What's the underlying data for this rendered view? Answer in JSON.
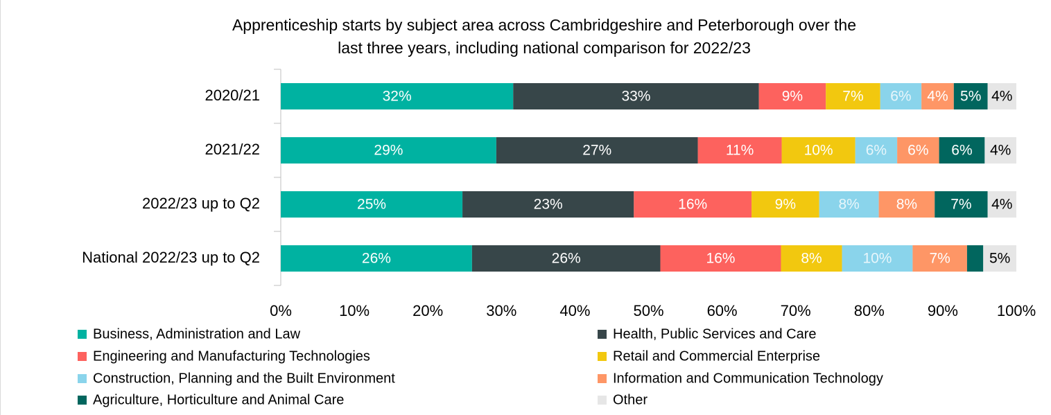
{
  "chart_data": {
    "type": "stacked-bar-horizontal",
    "title": [
      "Apprenticeship starts by subject area across Cambridgeshire and Peterborough over the",
      "last three years, including national comparison for 2022/23"
    ],
    "categories": [
      "2020/21",
      "2021/22",
      "2022/23 up to Q2",
      "National 2022/23 up to Q2"
    ],
    "series": [
      {
        "name": "Business, Administration and Law",
        "color": "#00b2a1",
        "label_color": "#ffffff",
        "values": [
          31.6,
          29.3,
          24.7,
          26.0
        ],
        "value_labels": [
          "32%",
          "29%",
          "25%",
          "26%"
        ]
      },
      {
        "name": "Health, Public Services and Care",
        "color": "#374649",
        "label_color": "#ffffff",
        "values": [
          33.4,
          27.4,
          23.3,
          25.6
        ],
        "value_labels": [
          "33%",
          "27%",
          "23%",
          "26%"
        ]
      },
      {
        "name": "Engineering and Manufacturing Technologies",
        "color": "#fd625e",
        "label_color": "#ffffff",
        "values": [
          9.1,
          11.4,
          16.0,
          16.4
        ],
        "value_labels": [
          "9%",
          "11%",
          "16%",
          "16%"
        ]
      },
      {
        "name": "Retail and Commercial Enterprise",
        "color": "#f2c80f",
        "label_color": "#ffffff",
        "values": [
          7.4,
          10.0,
          9.2,
          8.3
        ],
        "value_labels": [
          "7%",
          "10%",
          "9%",
          "8%"
        ]
      },
      {
        "name": "Construction, Planning and the Built Environment",
        "color": "#8ad4eb",
        "label_color": "#e8f6fb",
        "values": [
          5.6,
          5.7,
          8.1,
          9.6
        ],
        "value_labels": [
          "6%",
          "6%",
          "8%",
          "10%"
        ]
      },
      {
        "name": "Information and Communication Technology",
        "color": "#fe9666",
        "label_color": "#ffffff",
        "values": [
          4.4,
          5.7,
          7.6,
          7.4
        ],
        "value_labels": [
          "4%",
          "6%",
          "8%",
          "7%"
        ]
      },
      {
        "name": "Agriculture, Horticulture and Animal Care",
        "color": "#01665e",
        "label_color": "#ffffff",
        "values": [
          4.6,
          6.2,
          7.2,
          2.2
        ],
        "value_labels": [
          "5%",
          "6%",
          "7%",
          null
        ]
      },
      {
        "name": "Other",
        "color": "#e6e6e6",
        "label_color": "#000000",
        "values": [
          3.9,
          4.3,
          3.9,
          4.5
        ],
        "value_labels": [
          "4%",
          "4%",
          "4%",
          "5%"
        ]
      }
    ],
    "xlim": [
      0,
      100
    ],
    "xticks": [
      {
        "value": 0,
        "label": "0%"
      },
      {
        "value": 10,
        "label": "10%"
      },
      {
        "value": 20,
        "label": "20%"
      },
      {
        "value": 30,
        "label": "30%"
      },
      {
        "value": 40,
        "label": "40%"
      },
      {
        "value": 50,
        "label": "50%"
      },
      {
        "value": 60,
        "label": "60%"
      },
      {
        "value": 70,
        "label": "70%"
      },
      {
        "value": 80,
        "label": "80%"
      },
      {
        "value": 90,
        "label": "90%"
      },
      {
        "value": 100,
        "label": "100%"
      }
    ],
    "legend": "bottom"
  }
}
